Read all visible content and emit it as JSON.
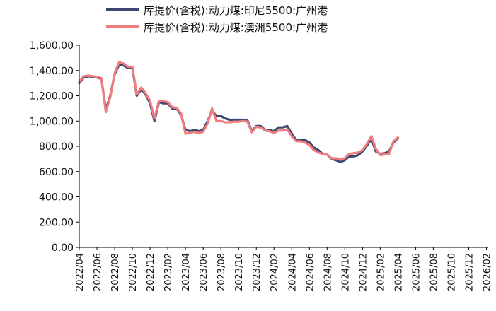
{
  "chart_data": {
    "type": "line",
    "title": "",
    "xlabel": "",
    "ylabel": "",
    "ylim": [
      0,
      1600
    ],
    "yticks": [
      "0.00",
      "200.00",
      "400.00",
      "600.00",
      "800.00",
      "1,000.00",
      "1,200.00",
      "1,400.00",
      "1,600.00"
    ],
    "xticks": [
      "2022/04",
      "2022/06",
      "2022/08",
      "2022/10",
      "2022/12",
      "2023/02",
      "2023/04",
      "2023/06",
      "2023/08",
      "2023/10",
      "2023/12",
      "2024/02",
      "2024/04",
      "2024/06",
      "2024/08",
      "2024/10",
      "2024/12",
      "2025/02",
      "2025/04",
      "2025/06",
      "2025/08",
      "2025/10",
      "2025/12",
      "2026/02"
    ],
    "legend_position": "top",
    "grid": false,
    "series": [
      {
        "name": "库提价(含税):动力煤:印尼5500:广州港",
        "color": "#3b4770",
        "points": [
          [
            "2022/04",
            1300
          ],
          [
            "2022/04.5",
            1345
          ],
          [
            "2022/05",
            1355
          ],
          [
            "2022/05.5",
            1350
          ],
          [
            "2022/06",
            1345
          ],
          [
            "2022/06.5",
            1335
          ],
          [
            "2022/07",
            1090
          ],
          [
            "2022/07.5",
            1200
          ],
          [
            "2022/08",
            1370
          ],
          [
            "2022/08.5",
            1445
          ],
          [
            "2022/09",
            1440
          ],
          [
            "2022/09.5",
            1420
          ],
          [
            "2022/10",
            1420
          ],
          [
            "2022/10.5",
            1200
          ],
          [
            "2022/11",
            1250
          ],
          [
            "2022/11.5",
            1210
          ],
          [
            "2022/12",
            1140
          ],
          [
            "2022/12.5",
            1000
          ],
          [
            "2023/01",
            1150
          ],
          [
            "2023/01.5",
            1140
          ],
          [
            "2023/02",
            1140
          ],
          [
            "2023/02.5",
            1100
          ],
          [
            "2023/03",
            1100
          ],
          [
            "2023/03.5",
            1050
          ],
          [
            "2023/04",
            930
          ],
          [
            "2023/04.5",
            920
          ],
          [
            "2023/05",
            930
          ],
          [
            "2023/05.5",
            920
          ],
          [
            "2023/06",
            930
          ],
          [
            "2023/06.5",
            1000
          ],
          [
            "2023/07",
            1080
          ],
          [
            "2023/07.5",
            1040
          ],
          [
            "2023/08",
            1040
          ],
          [
            "2023/08.5",
            1020
          ],
          [
            "2023/09",
            1010
          ],
          [
            "2023/09.5",
            1010
          ],
          [
            "2023/10",
            1010
          ],
          [
            "2023/10.5",
            1010
          ],
          [
            "2023/11",
            1005
          ],
          [
            "2023/11.5",
            920
          ],
          [
            "2023/12",
            960
          ],
          [
            "2023/12.5",
            960
          ],
          [
            "2024/01",
            930
          ],
          [
            "2024/01.5",
            930
          ],
          [
            "2024/02",
            920
          ],
          [
            "2024/02.5",
            950
          ],
          [
            "2024/03",
            950
          ],
          [
            "2024/03.5",
            960
          ],
          [
            "2024/04",
            900
          ],
          [
            "2024/04.5",
            850
          ],
          [
            "2024/05",
            850
          ],
          [
            "2024/05.5",
            850
          ],
          [
            "2024/06",
            830
          ],
          [
            "2024/06.5",
            790
          ],
          [
            "2024/07",
            770
          ],
          [
            "2024/07.5",
            740
          ],
          [
            "2024/08",
            735
          ],
          [
            "2024/08.5",
            700
          ],
          [
            "2024/09",
            690
          ],
          [
            "2024/09.5",
            675
          ],
          [
            "2024/10",
            690
          ],
          [
            "2024/10.5",
            720
          ],
          [
            "2024/11",
            720
          ],
          [
            "2024/11.5",
            730
          ],
          [
            "2024/12",
            760
          ],
          [
            "2024/12.5",
            805
          ],
          [
            "2025/01",
            860
          ],
          [
            "2025/01.5",
            760
          ],
          [
            "2025/02",
            740
          ],
          [
            "2025/02.5",
            745
          ],
          [
            "2025/03",
            760
          ],
          [
            "2025/03.5",
            830
          ],
          [
            "2025/04",
            865
          ]
        ]
      },
      {
        "name": "库提价(含税):动力煤:澳洲5500:广州港",
        "color": "#f07d7d",
        "points": [
          [
            "2022/04",
            1310
          ],
          [
            "2022/04.5",
            1355
          ],
          [
            "2022/05",
            1360
          ],
          [
            "2022/05.5",
            1355
          ],
          [
            "2022/06",
            1350
          ],
          [
            "2022/06.5",
            1340
          ],
          [
            "2022/07",
            1070
          ],
          [
            "2022/07.5",
            1190
          ],
          [
            "2022/08",
            1380
          ],
          [
            "2022/08.5",
            1465
          ],
          [
            "2022/09",
            1455
          ],
          [
            "2022/09.5",
            1430
          ],
          [
            "2022/10",
            1430
          ],
          [
            "2022/10.5",
            1210
          ],
          [
            "2022/11",
            1265
          ],
          [
            "2022/11.5",
            1220
          ],
          [
            "2022/12",
            1160
          ],
          [
            "2022/12.5",
            1020
          ],
          [
            "2023/01",
            1160
          ],
          [
            "2023/01.5",
            1155
          ],
          [
            "2023/02",
            1150
          ],
          [
            "2023/02.5",
            1110
          ],
          [
            "2023/03",
            1105
          ],
          [
            "2023/03.5",
            1060
          ],
          [
            "2023/04",
            900
          ],
          [
            "2023/04.5",
            905
          ],
          [
            "2023/05",
            915
          ],
          [
            "2023/05.5",
            905
          ],
          [
            "2023/06",
            915
          ],
          [
            "2023/06.5",
            980
          ],
          [
            "2023/07",
            1100
          ],
          [
            "2023/07.5",
            1000
          ],
          [
            "2023/08",
            1000
          ],
          [
            "2023/08.5",
            990
          ],
          [
            "2023/09",
            990
          ],
          [
            "2023/09.5",
            995
          ],
          [
            "2023/10",
            995
          ],
          [
            "2023/10.5",
            1000
          ],
          [
            "2023/11",
            995
          ],
          [
            "2023/11.5",
            910
          ],
          [
            "2023/12",
            955
          ],
          [
            "2023/12.5",
            950
          ],
          [
            "2024/01",
            925
          ],
          [
            "2024/01.5",
            920
          ],
          [
            "2024/02",
            905
          ],
          [
            "2024/02.5",
            925
          ],
          [
            "2024/03",
            925
          ],
          [
            "2024/03.5",
            935
          ],
          [
            "2024/04",
            880
          ],
          [
            "2024/04.5",
            840
          ],
          [
            "2024/05",
            840
          ],
          [
            "2024/05.5",
            830
          ],
          [
            "2024/06",
            810
          ],
          [
            "2024/06.5",
            770
          ],
          [
            "2024/07",
            750
          ],
          [
            "2024/07.5",
            740
          ],
          [
            "2024/08",
            735
          ],
          [
            "2024/08.5",
            705
          ],
          [
            "2024/09",
            705
          ],
          [
            "2024/09.5",
            700
          ],
          [
            "2024/10",
            705
          ],
          [
            "2024/10.5",
            740
          ],
          [
            "2024/11",
            745
          ],
          [
            "2024/11.5",
            750
          ],
          [
            "2024/12",
            770
          ],
          [
            "2024/12.5",
            820
          ],
          [
            "2025/01",
            880
          ],
          [
            "2025/01.5",
            780
          ],
          [
            "2025/02",
            730
          ],
          [
            "2025/02.5",
            735
          ],
          [
            "2025/03",
            740
          ],
          [
            "2025/03.5",
            840
          ],
          [
            "2025/04",
            870
          ]
        ]
      }
    ]
  }
}
